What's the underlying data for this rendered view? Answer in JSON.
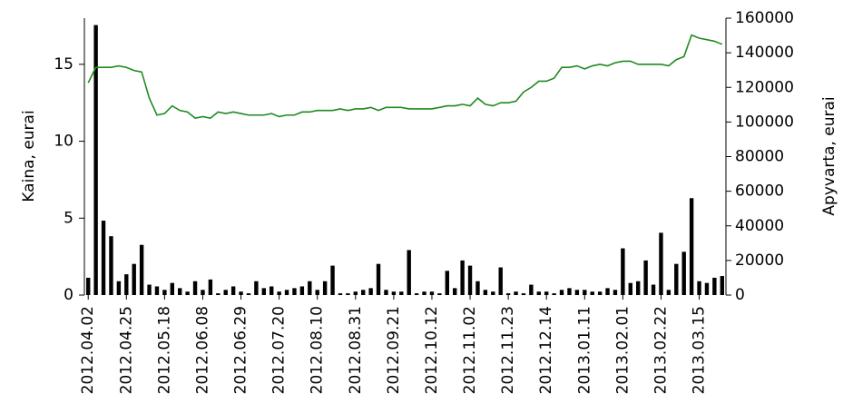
{
  "chart_data": {
    "type": "combo",
    "ylabel": "Kaina, eurai",
    "y2label": "Apyvarta, eurai",
    "categories": [
      "2012.04.02",
      null,
      null,
      null,
      null,
      "2012.04.25",
      null,
      null,
      null,
      null,
      "2012.05.18",
      null,
      null,
      null,
      null,
      "2012.06.08",
      null,
      null,
      null,
      null,
      "2012.06.29",
      null,
      null,
      null,
      null,
      "2012.07.20",
      null,
      null,
      null,
      null,
      "2012.08.10",
      null,
      null,
      null,
      null,
      "2012.08.31",
      null,
      null,
      null,
      null,
      "2012.09.21",
      null,
      null,
      null,
      null,
      "2012.10.12",
      null,
      null,
      null,
      null,
      "2012.11.02",
      null,
      null,
      null,
      null,
      "2012.11.23",
      null,
      null,
      null,
      null,
      "2012.12.14",
      null,
      null,
      null,
      null,
      "2013.01.11",
      null,
      null,
      null,
      null,
      "2013.02.01",
      null,
      null,
      null,
      null,
      "2013.02.22",
      null,
      null,
      null,
      null,
      "2013.03.15",
      null,
      null,
      null
    ],
    "series": [
      {
        "type": "line",
        "color": "#1f8a1f",
        "values": [
          13.8,
          14.8,
          14.8,
          14.8,
          14.9,
          14.8,
          14.6,
          14.5,
          12.8,
          11.7,
          11.8,
          12.3,
          12.0,
          11.9,
          11.5,
          11.6,
          11.5,
          11.9,
          11.8,
          11.9,
          11.8,
          11.7,
          11.7,
          11.7,
          11.8,
          11.6,
          11.7,
          11.7,
          11.9,
          11.9,
          12.0,
          12.0,
          12.0,
          12.1,
          12.0,
          12.1,
          12.1,
          12.2,
          12.0,
          12.2,
          12.2,
          12.2,
          12.1,
          12.1,
          12.1,
          12.1,
          12.2,
          12.3,
          12.3,
          12.4,
          12.3,
          12.8,
          12.4,
          12.3,
          12.5,
          12.5,
          12.6,
          13.2,
          13.5,
          13.9,
          13.9,
          14.1,
          14.8,
          14.8,
          14.9,
          14.7,
          14.9,
          15.0,
          14.9,
          15.1,
          15.2,
          15.2,
          15.0,
          15.0,
          15.0,
          15.0,
          14.9,
          15.3,
          15.5,
          16.9,
          16.7,
          16.6,
          16.5,
          16.3
        ]
      },
      {
        "type": "bar",
        "axis": "y2",
        "color": "#000000",
        "values": [
          10000,
          156000,
          43000,
          34000,
          8000,
          12000,
          18000,
          29000,
          6000,
          5000,
          3000,
          7000,
          4000,
          2000,
          8000,
          3000,
          9000,
          1000,
          3000,
          5000,
          2000,
          1000,
          8000,
          4000,
          5000,
          2000,
          3000,
          4000,
          5000,
          8000,
          3000,
          8000,
          17000,
          1000,
          1000,
          2000,
          3000,
          4000,
          18000,
          3000,
          2000,
          2000,
          26000,
          1000,
          2000,
          2000,
          1000,
          14000,
          4000,
          20000,
          17000,
          8000,
          3000,
          2000,
          16000,
          1000,
          2000,
          1000,
          6000,
          2000,
          2000,
          1000,
          3000,
          4000,
          3000,
          3000,
          2000,
          2000,
          4000,
          3000,
          27000,
          7000,
          8000,
          20000,
          6000,
          36000,
          3000,
          18000,
          25000,
          56000,
          8000,
          7000,
          10000,
          11000
        ]
      }
    ],
    "ylim": [
      0,
      18
    ],
    "yticks": [
      0,
      5,
      10,
      15
    ],
    "y2lim": [
      0,
      160000
    ],
    "y2ticks": [
      0,
      20000,
      40000,
      60000,
      80000,
      100000,
      120000,
      140000,
      160000
    ]
  }
}
